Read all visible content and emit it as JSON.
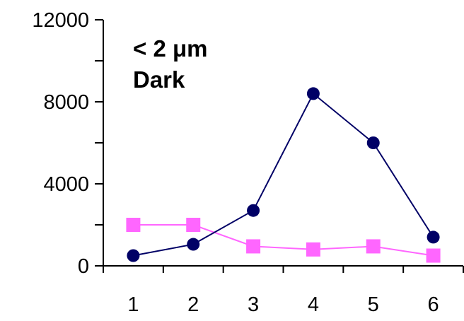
{
  "chart_data": {
    "type": "line",
    "title": "",
    "xlabel": "",
    "ylabel": "",
    "x": [
      1,
      2,
      3,
      4,
      5,
      6
    ],
    "x_ticks": [
      "1",
      "2",
      "3",
      "4",
      "5",
      "6"
    ],
    "ylim": [
      0,
      12000
    ],
    "y_ticks": [
      0,
      4000,
      8000,
      12000
    ],
    "y_tick_labels": [
      "0",
      "4000",
      "8000",
      "12000"
    ],
    "grid": false,
    "annotation_lines": [
      "< 2 μm",
      "Dark"
    ],
    "series": [
      {
        "values": [
          500,
          1050,
          2700,
          8400,
          6000,
          1400
        ],
        "color": "#000066",
        "marker": "circle"
      },
      {
        "values": [
          2000,
          2000,
          950,
          800,
          950,
          500
        ],
        "color": "#ff66ff",
        "marker": "square"
      }
    ]
  }
}
